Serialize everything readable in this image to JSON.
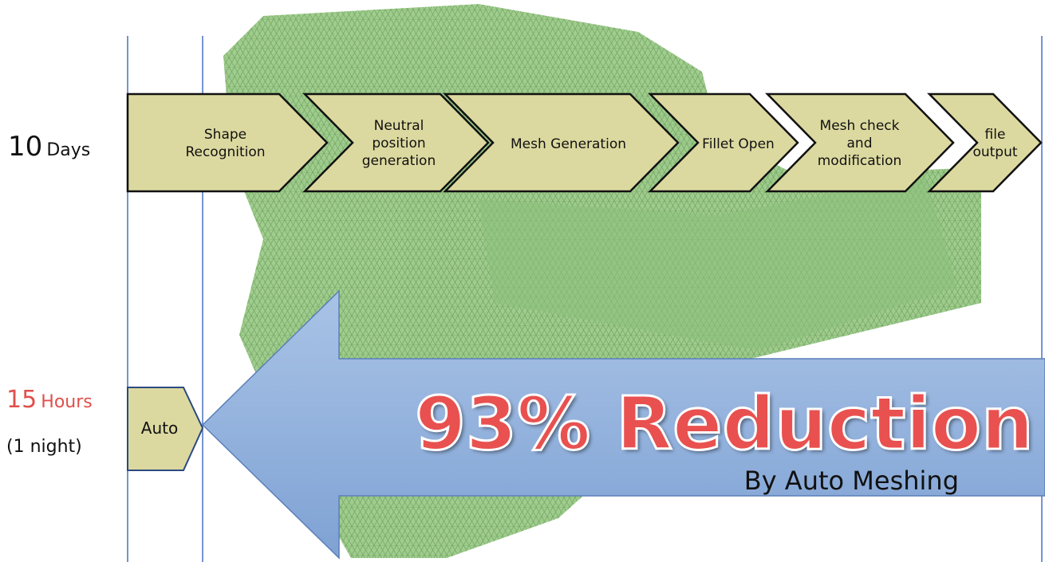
{
  "rows": {
    "before": {
      "number": "10",
      "unit": "Days"
    },
    "after": {
      "number": "15",
      "unit": "Hours",
      "note": "(1 night)"
    }
  },
  "steps": [
    "Shape Recognition",
    "Neutral position generation",
    "Mesh Generation",
    "Fillet Open",
    "Mesh check and modification",
    "file output"
  ],
  "auto": "Auto",
  "reduction": {
    "headline": "93% Reduction",
    "subtitle": "By Auto Meshing"
  }
}
